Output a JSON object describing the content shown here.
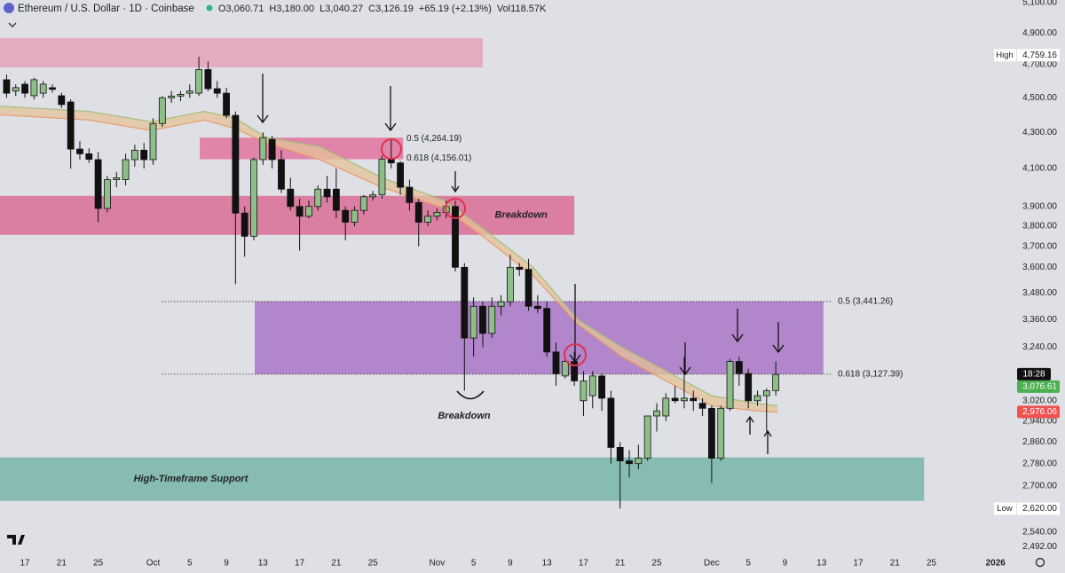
{
  "chart_data": {
    "type": "candlestick",
    "header": {
      "symbol": "Ethereum / U.S. Dollar · 1D · Coinbase",
      "fields": [
        {
          "key": "O",
          "text": "3,060.71"
        },
        {
          "key": "H",
          "text": "3,180.00"
        },
        {
          "key": "L",
          "text": "3,040.27"
        },
        {
          "key": "C",
          "text": "3,126.19"
        },
        {
          "key": "",
          "text": "+65.19 (+2.13%)"
        },
        {
          "key": "Vol",
          "text": "118.57K"
        }
      ]
    },
    "log_scale": true,
    "xlim": [
      -2.72,
      106.8
    ],
    "ylim": [
      2467,
      5118
    ],
    "xticks": [
      {
        "value": 0,
        "label": "17"
      },
      {
        "value": 4,
        "label": "21"
      },
      {
        "value": 8,
        "label": "25"
      },
      {
        "value": 14,
        "label": "Oct"
      },
      {
        "value": 18,
        "label": "5"
      },
      {
        "value": 22,
        "label": "9"
      },
      {
        "value": 26,
        "label": "13"
      },
      {
        "value": 30,
        "label": "17"
      },
      {
        "value": 34,
        "label": "21"
      },
      {
        "value": 38,
        "label": "25"
      },
      {
        "value": 45,
        "label": "Nov"
      },
      {
        "value": 49,
        "label": "5"
      },
      {
        "value": 53,
        "label": "9"
      },
      {
        "value": 57,
        "label": "13"
      },
      {
        "value": 61,
        "label": "17"
      },
      {
        "value": 65,
        "label": "21"
      },
      {
        "value": 69,
        "label": "25"
      },
      {
        "value": 75,
        "label": "Dec"
      },
      {
        "value": 79,
        "label": "5"
      },
      {
        "value": 83,
        "label": "9"
      },
      {
        "value": 87,
        "label": "13"
      },
      {
        "value": 91,
        "label": "17"
      },
      {
        "value": 95,
        "label": "21"
      },
      {
        "value": 99,
        "label": "25"
      },
      {
        "value": 106,
        "label": "2026"
      }
    ],
    "yticks": [
      {
        "value": 5100,
        "label": "5,100.00"
      },
      {
        "value": 4900,
        "label": "4,900.00"
      },
      {
        "value": 4700,
        "label": "4,700.00"
      },
      {
        "value": 4500,
        "label": "4,500.00"
      },
      {
        "value": 4300,
        "label": "4,300.00"
      },
      {
        "value": 4100,
        "label": "4,100.00"
      },
      {
        "value": 3900,
        "label": "3,900.00"
      },
      {
        "value": 3800,
        "label": "3,800.00"
      },
      {
        "value": 3700,
        "label": "3,700.00"
      },
      {
        "value": 3600,
        "label": "3,600.00"
      },
      {
        "value": 3480,
        "label": "3,480.00"
      },
      {
        "value": 3360,
        "label": "3,360.00"
      },
      {
        "value": 3240,
        "label": "3,240.00"
      },
      {
        "value": 3020,
        "label": "3,020.00"
      },
      {
        "value": 2940,
        "label": "2,940.00"
      },
      {
        "value": 2860,
        "label": "2,860.00"
      },
      {
        "value": 2780,
        "label": "2,780.00"
      },
      {
        "value": 2700,
        "label": "2,700.00"
      },
      {
        "value": 2620,
        "label": "2,620.00"
      },
      {
        "value": 2540,
        "label": "2,540.00"
      },
      {
        "value": 2492,
        "label": "2,492.00"
      }
    ],
    "up_color": "#8fbf88",
    "down_color": "#111111",
    "candles": {
      "x": [
        -2,
        -1,
        0,
        1,
        2,
        3,
        4,
        5,
        6,
        7,
        8,
        9,
        10,
        11,
        12,
        13,
        14,
        15,
        16,
        17,
        18,
        19,
        20,
        21,
        22,
        23,
        24,
        25,
        26,
        27,
        28,
        29,
        30,
        31,
        32,
        33,
        34,
        35,
        36,
        37,
        38,
        39,
        40,
        41,
        42,
        43,
        44,
        45,
        46,
        47,
        48,
        49,
        50,
        51,
        52,
        53,
        54,
        55,
        56,
        57,
        58,
        59,
        60,
        61,
        62,
        63,
        64,
        65,
        66,
        67,
        68,
        69,
        70,
        71,
        72,
        73,
        74,
        75,
        76,
        77,
        78,
        79,
        80,
        81,
        82
      ],
      "open": [
        4608,
        4540,
        4581,
        4512,
        4527,
        4560,
        4512,
        4475,
        4206,
        4180,
        4148,
        3890,
        4040,
        4040,
        4148,
        4200,
        4148,
        4350,
        4500,
        4510,
        4527,
        4527,
        4670,
        4554,
        4527,
        4397,
        3866,
        3750,
        4148,
        4260,
        4148,
        3990,
        3900,
        3850,
        3900,
        3990,
        3990,
        3880,
        3820,
        3880,
        3950,
        3960,
        4150,
        4130,
        4000,
        3920,
        3820,
        3850,
        3870,
        3900,
        3600,
        3280,
        3420,
        3300,
        3420,
        3440,
        3600,
        3590,
        3420,
        3410,
        3220,
        3120,
        3180,
        3020,
        3040,
        3120,
        3030,
        2840,
        2790,
        2780,
        2800,
        2960,
        2960,
        3030,
        3020,
        3030,
        3010,
        2990,
        2800,
        2990,
        3180,
        3130,
        3020,
        3040,
        3060.71
      ],
      "high": [
        4640,
        4580,
        4600,
        4620,
        4600,
        4580,
        4530,
        4490,
        4250,
        4210,
        4190,
        4060,
        4080,
        4180,
        4230,
        4240,
        4380,
        4510,
        4540,
        4540,
        4580,
        4750,
        4720,
        4600,
        4560,
        4420,
        3900,
        4160,
        4300,
        4280,
        4200,
        4050,
        3940,
        3930,
        4010,
        4060,
        4100,
        3900,
        3900,
        3960,
        3980,
        4170,
        4260,
        4140,
        4040,
        3940,
        3880,
        3890,
        3930,
        3930,
        3620,
        3460,
        3440,
        3460,
        3470,
        3660,
        3620,
        3640,
        3470,
        3440,
        3260,
        3200,
        3220,
        3140,
        3140,
        3130,
        3060,
        2860,
        2830,
        2850,
        2960,
        3010,
        3050,
        3080,
        3200,
        3060,
        3030,
        3000,
        3000,
        3190,
        3200,
        3150,
        3060,
        3070,
        3180
      ],
      "low": [
        4500,
        4510,
        4500,
        4490,
        4500,
        4530,
        4440,
        4099,
        4148,
        4130,
        3821,
        3870,
        4000,
        4010,
        4110,
        4100,
        4120,
        4330,
        4470,
        4480,
        4500,
        4510,
        4540,
        4500,
        4380,
        3521,
        3650,
        3730,
        4120,
        4100,
        3970,
        3880,
        3680,
        3840,
        3880,
        3920,
        3840,
        3730,
        3800,
        3860,
        3930,
        3940,
        4100,
        3960,
        3880,
        3700,
        3800,
        3830,
        3840,
        3580,
        3060,
        3200,
        3240,
        3280,
        3380,
        3420,
        3560,
        3400,
        3390,
        3200,
        3080,
        3110,
        3080,
        2960,
        2990,
        2980,
        2780,
        2620,
        2730,
        2760,
        2790,
        2900,
        2940,
        3010,
        2990,
        2980,
        2960,
        2710,
        2790,
        2980,
        3080,
        2990,
        3000,
        2900,
        3040.27
      ],
      "close": [
        4527,
        4560,
        4527,
        4608,
        4581,
        4550,
        4460,
        4206,
        4180,
        4150,
        3890,
        4040,
        4050,
        4148,
        4200,
        4148,
        4350,
        4500,
        4510,
        4520,
        4540,
        4670,
        4554,
        4527,
        4397,
        3866,
        3750,
        4148,
        4270,
        4148,
        3990,
        3900,
        3850,
        3900,
        3990,
        3950,
        3880,
        3820,
        3880,
        3950,
        3960,
        4150,
        4130,
        4000,
        3920,
        3820,
        3850,
        3870,
        3900,
        3600,
        3280,
        3420,
        3300,
        3420,
        3440,
        3600,
        3590,
        3420,
        3410,
        3220,
        3130,
        3180,
        3100,
        3100,
        3120,
        3030,
        2840,
        2790,
        2780,
        2800,
        2960,
        2980,
        3030,
        3020,
        3030,
        3020,
        2990,
        2800,
        2990,
        3180,
        3130,
        3020,
        3040,
        3060,
        3126.19
      ]
    },
    "ribbon": {
      "x": [
        -2.7,
        7,
        13.8,
        19.6,
        23,
        26.4,
        32.2,
        39,
        45.8,
        49.7,
        55.5,
        60.4,
        65.2,
        72,
        75,
        79.8,
        82.2
      ],
      "a": [
        4450,
        4420,
        4360,
        4420,
        4380,
        4270,
        4220,
        4050,
        3930,
        3800,
        3600,
        3360,
        3240,
        3100,
        3040,
        3010,
        3000
      ],
      "b": [
        4400,
        4370,
        4310,
        4370,
        4320,
        4240,
        4148,
        4000,
        3890,
        3760,
        3560,
        3340,
        3200,
        3060,
        3000,
        2980,
        2975
      ]
    },
    "zones": [
      {
        "x": [
          -2.72,
          50
        ],
        "y": [
          4683,
          4867
        ],
        "color": "#e4a6bd"
      },
      {
        "x": [
          19.1,
          41.3
        ],
        "y": [
          4150,
          4270
        ],
        "color": "#e07aa2"
      },
      {
        "x": [
          -2.72,
          60
        ],
        "y": [
          3757,
          3955
        ],
        "color": "#d9739a",
        "label": "Breakdown"
      },
      {
        "x": [
          25.1,
          87.2
        ],
        "y": [
          3127.39,
          3441.26
        ],
        "color": "#ad7cc7"
      },
      {
        "x": [
          -2.72,
          98.2
        ],
        "y": [
          2647,
          2803
        ],
        "color": "#7db8ad",
        "label": "High-Timeframe Support"
      }
    ],
    "fib_lines": [
      {
        "value": 3441.26,
        "label": "0.5 (3,441.26)"
      },
      {
        "value": 3127.39,
        "label": "0.618 (3,127.39)"
      }
    ],
    "fib_labels_top": [
      {
        "value": 4264.19,
        "label": "0.5 (4,264.19)"
      },
      {
        "value": 4156.01,
        "label": "0.618 (4,156.01)"
      }
    ],
    "annotation": "Breakdown",
    "high_tag": {
      "name": "High",
      "value": 4759.16,
      "label": "4,759.16"
    },
    "low_tag": {
      "name": "Low",
      "value": 2620,
      "label": "2,620.00"
    },
    "countdown": "18:28",
    "price_tags": [
      {
        "value": 3076.61,
        "label": "3,076.61",
        "color": "#4caf50"
      },
      {
        "value": 2976.06,
        "label": "2,976.06",
        "color": "#ef5350"
      }
    ]
  }
}
